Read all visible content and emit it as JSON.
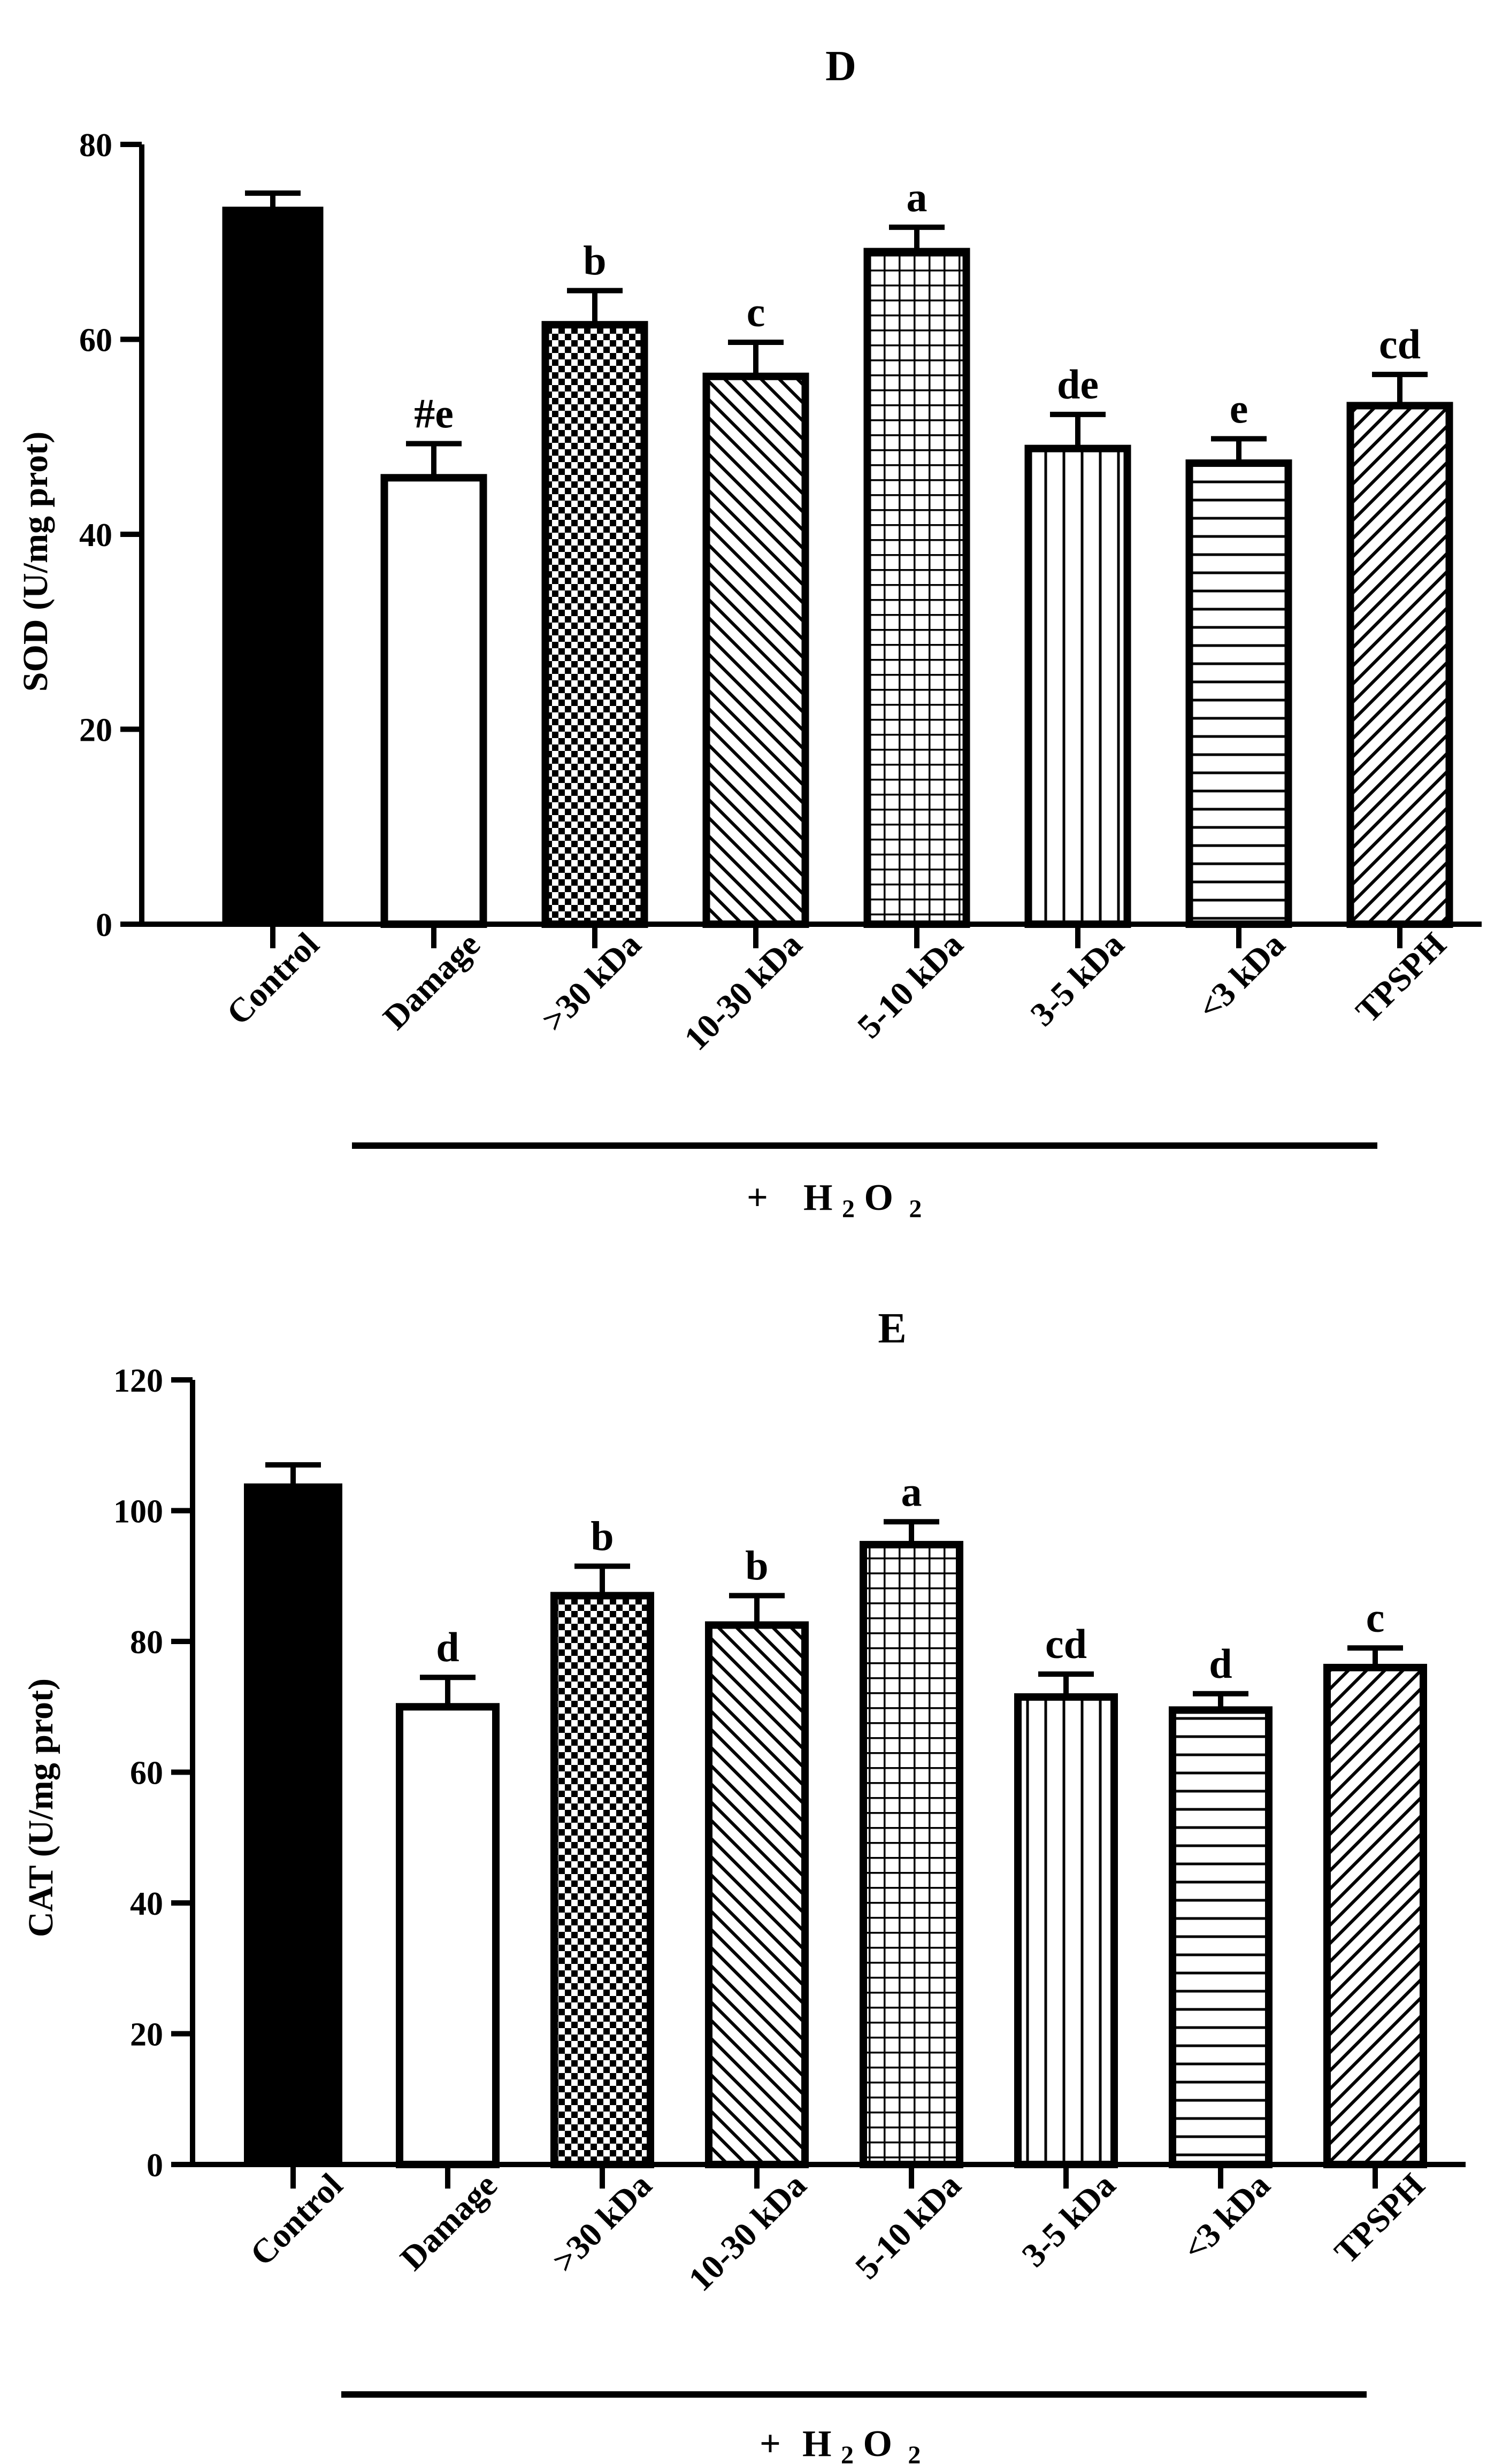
{
  "chart_data": [
    {
      "panel": "D",
      "type": "bar",
      "title": "D",
      "ylabel": "SOD (U/mg prot)",
      "xlabel": "",
      "ylim": [
        0,
        80
      ],
      "yticks": [
        0,
        20,
        40,
        60,
        80
      ],
      "categories": [
        "Control",
        "Damage",
        ">30 kDa",
        "10-30 kDa",
        "5-10 kDa",
        "3-5 kDa",
        "<3 kDa",
        "TPSPH"
      ],
      "values": [
        73.5,
        45.8,
        61.5,
        56.2,
        69.0,
        48.8,
        47.3,
        53.2
      ],
      "errors": [
        1.5,
        3.5,
        3.5,
        3.5,
        2.5,
        3.5,
        2.5,
        3.2
      ],
      "letters": [
        "",
        "#e",
        "b",
        "c",
        "a",
        "de",
        "e",
        "cd"
      ],
      "patterns": [
        "solid",
        "empty",
        "checker",
        "diag-back",
        "grid",
        "vertical",
        "horizontal",
        "diag-fwd"
      ],
      "group_label": {
        "plus": "+",
        "chem_main": "H",
        "chem_sub1": "2",
        "chem_mid": "O",
        "chem_sub2": "2"
      }
    },
    {
      "panel": "E",
      "type": "bar",
      "title": "E",
      "ylabel": "CAT (U/mg prot)",
      "xlabel": "",
      "ylim": [
        0,
        120
      ],
      "yticks": [
        0,
        20,
        40,
        60,
        80,
        100,
        120
      ],
      "categories": [
        "Control",
        "Damage",
        ">30 kDa",
        "10-30 kDa",
        "5-10 kDa",
        "3-5 kDa",
        "<3 kDa",
        "TPSPH"
      ],
      "values": [
        104.0,
        70.0,
        87.0,
        82.5,
        94.8,
        71.5,
        69.5,
        76.0
      ],
      "errors": [
        3.0,
        4.5,
        4.5,
        4.5,
        3.5,
        3.5,
        2.5,
        3.0
      ],
      "letters": [
        "",
        "d",
        "b",
        "b",
        "a",
        "cd",
        "d",
        "c"
      ],
      "patterns": [
        "solid",
        "empty",
        "checker",
        "diag-back",
        "grid",
        "vertical",
        "horizontal",
        "diag-fwd"
      ],
      "group_label": {
        "plus": "+",
        "chem_main": "H",
        "chem_sub1": "2",
        "chem_mid": "O",
        "chem_sub2": "2"
      }
    }
  ]
}
